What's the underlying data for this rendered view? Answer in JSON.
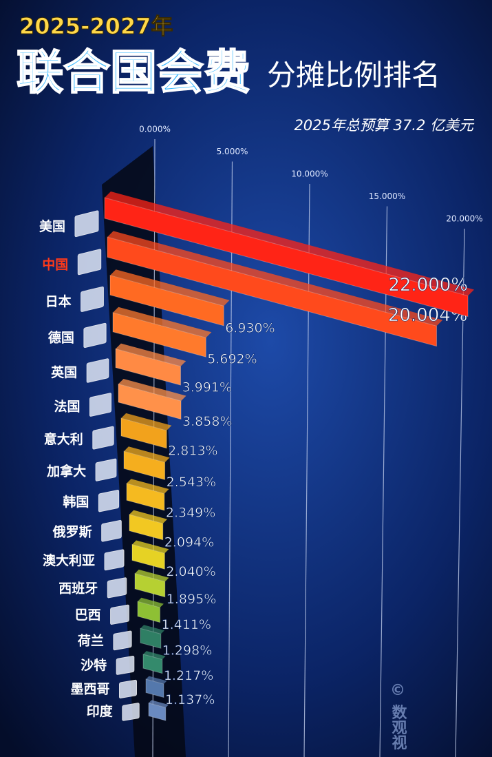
{
  "chart_data": {
    "type": "bar3d",
    "title_top": "2025-2027年",
    "title_main": "联合国会费",
    "title_sub": "分摊比例排名",
    "subtitle": "2025年总预算 37.2 亿美元",
    "watermark": "© 数观视",
    "categories": [
      "美国",
      "中国",
      "日本",
      "德国",
      "英国",
      "法国",
      "意大利",
      "加拿大",
      "韩国",
      "俄罗斯",
      "澳大利亚",
      "西班牙",
      "巴西",
      "荷兰",
      "沙特",
      "墨西哥",
      "印度"
    ],
    "values": [
      22.0,
      20.004,
      6.93,
      5.692,
      3.991,
      3.858,
      2.813,
      2.543,
      2.349,
      2.094,
      2.04,
      1.895,
      1.411,
      1.298,
      1.217,
      1.137,
      1.09
    ],
    "value_labels": [
      "22.000%",
      "20.004%",
      "6.930%",
      "5.692%",
      "3.991%",
      "3.858%",
      "2.813%",
      "2.543%",
      "2.349%",
      "2.094%",
      "2.040%",
      "1.895%",
      "1.411%",
      "1.298%",
      "1.217%",
      "1.137%",
      null
    ],
    "colors": [
      "#ff2416",
      "#ff4a1c",
      "#ff6a22",
      "#ff7a2c",
      "#ff8a44",
      "#ff914a",
      "#f2a21c",
      "#f5ae1e",
      "#f5ba20",
      "#f2c822",
      "#e6d224",
      "#b6d032",
      "#8ec034",
      "#2f7f64",
      "#348a6c",
      "#5478ac",
      "#6a8ac0"
    ],
    "label_colors": [
      "#ffffff",
      "#ff3a1a",
      "#ffffff",
      "#ffffff",
      "#ffffff",
      "#ffffff",
      "#ffffff",
      "#ffffff",
      "#ffffff",
      "#ffffff",
      "#ffffff",
      "#ffffff",
      "#ffffff",
      "#ffffff",
      "#ffffff",
      "#ffffff",
      "#ffffff"
    ],
    "xlim": [
      0,
      22
    ],
    "xticks": [
      {
        "value": 0,
        "label": "0.000%"
      },
      {
        "value": 5,
        "label": "5.000%"
      },
      {
        "value": 10,
        "label": "10.000%"
      },
      {
        "value": 15,
        "label": "15.000%"
      },
      {
        "value": 20,
        "label": "20.000%"
      }
    ],
    "grid": true
  }
}
